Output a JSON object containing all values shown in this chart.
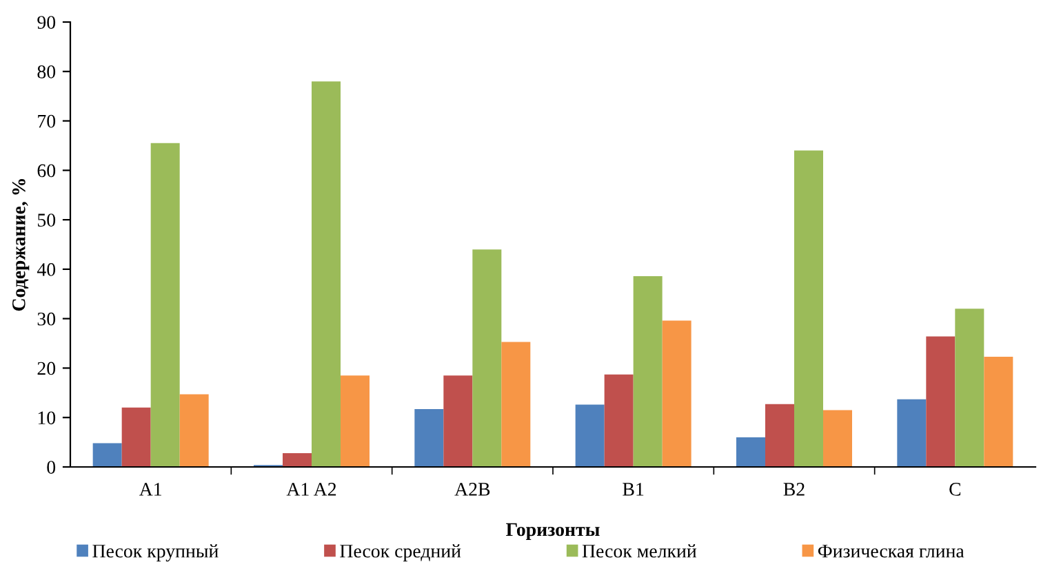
{
  "chart_data": {
    "type": "bar",
    "xlabel": "Горизонты",
    "ylabel": "Содержание, %",
    "categories": [
      "A1",
      "A1 A2",
      "A2B",
      "B1",
      "B2",
      "C"
    ],
    "series": [
      {
        "name": "Песок крупный",
        "color": "#4f81bd",
        "values": [
          4.8,
          0.4,
          11.7,
          12.6,
          6,
          13.7
        ]
      },
      {
        "name": "Песок средний",
        "color": "#c0504d",
        "values": [
          12,
          2.8,
          18.5,
          18.7,
          12.7,
          26.4
        ]
      },
      {
        "name": "Песок мелкий",
        "color": "#9bbb59",
        "values": [
          65.5,
          78,
          44,
          38.6,
          64,
          32
        ]
      },
      {
        "name": "Физическая глина",
        "color": "#f79646",
        "values": [
          14.7,
          18.5,
          25.3,
          29.6,
          11.5,
          22.3
        ]
      }
    ],
    "ylim": [
      0,
      90
    ],
    "yticks": [
      0,
      10,
      20,
      30,
      40,
      50,
      60,
      70,
      80,
      90
    ],
    "grid": false,
    "legend": "bottom"
  }
}
